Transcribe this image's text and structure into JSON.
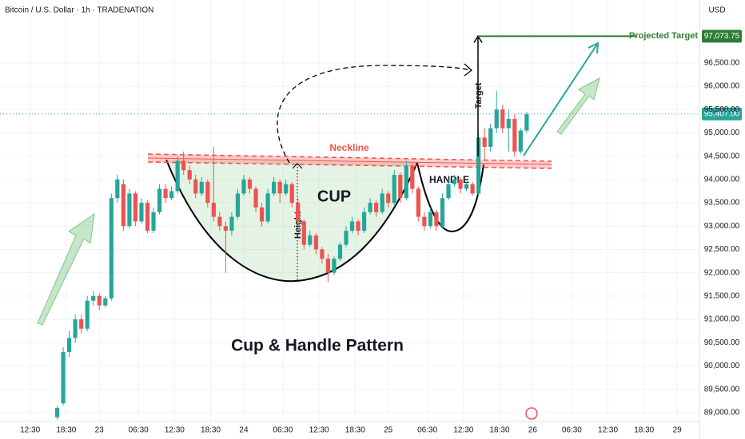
{
  "chart_data": {
    "type": "candlestick",
    "title": "Bitcoin / U.S. Dollar · 1h · TRADENATION",
    "currency": "USD",
    "up_color": "#26a69a",
    "down_color": "#ef5350",
    "grid": true,
    "x": [
      17,
      18,
      19,
      20,
      21,
      22,
      23,
      24,
      25,
      26,
      27,
      28,
      29,
      30,
      31,
      32,
      33,
      34,
      35,
      36,
      37,
      38,
      39,
      40,
      41,
      42,
      43,
      44,
      45,
      46,
      47,
      48,
      49,
      50,
      51,
      52,
      53,
      54,
      55,
      56,
      57,
      58,
      59,
      60,
      61,
      62,
      63,
      64,
      65,
      66,
      67,
      68,
      69,
      70,
      71,
      72,
      73,
      74,
      75,
      76,
      77,
      78,
      79,
      80,
      81,
      82,
      83,
      84,
      85,
      86,
      87,
      88,
      89,
      90,
      91,
      92,
      93,
      94,
      95
    ],
    "open": [
      88900,
      89200,
      90300,
      90600,
      91000,
      90800,
      91400,
      91500,
      91300,
      91450,
      93600,
      93900,
      93000,
      93700,
      93100,
      93500,
      92900,
      93300,
      93800,
      93600,
      93750,
      94400,
      94200,
      94000,
      93700,
      93950,
      93500,
      93200,
      93000,
      92900,
      93200,
      93700,
      94000,
      93800,
      93400,
      93100,
      93700,
      93950,
      93700,
      93900,
      93500,
      93100,
      92600,
      92800,
      92500,
      92300,
      92000,
      92300,
      92600,
      92900,
      93100,
      92900,
      93300,
      93500,
      93300,
      93700,
      93500,
      94100,
      93600,
      94300,
      93800,
      93200,
      93000,
      93300,
      93000,
      93600,
      93900,
      94000,
      93800,
      93900,
      93700,
      94900,
      94700,
      95100,
      95500,
      95100,
      95300,
      94600,
      95050
    ],
    "high": [
      89150,
      90400,
      90750,
      91100,
      91100,
      91500,
      91600,
      91550,
      91500,
      93700,
      94100,
      94000,
      93800,
      93750,
      93600,
      93550,
      93400,
      93900,
      93900,
      93850,
      94500,
      94600,
      94300,
      94100,
      94050,
      94000,
      94700,
      93300,
      93100,
      93300,
      93800,
      94100,
      94050,
      93850,
      93500,
      93800,
      94050,
      94000,
      94000,
      93950,
      93600,
      93150,
      92900,
      92850,
      92550,
      92400,
      92350,
      92650,
      93000,
      93200,
      93150,
      93400,
      93600,
      93550,
      93800,
      93750,
      94200,
      94150,
      94400,
      94350,
      93850,
      93300,
      93400,
      93350,
      93700,
      94000,
      94100,
      94050,
      93950,
      93950,
      95000,
      95100,
      95200,
      95900,
      95600,
      95500,
      95400,
      95100,
      95450
    ],
    "low": [
      88850,
      89150,
      90200,
      90500,
      90700,
      90750,
      91300,
      91200,
      91250,
      91400,
      93500,
      92900,
      92950,
      93000,
      93050,
      92850,
      92850,
      93250,
      93500,
      93550,
      93700,
      94100,
      93900,
      93600,
      93650,
      93400,
      93100,
      92900,
      92000,
      92800,
      93150,
      93650,
      93700,
      93300,
      93000,
      93050,
      93650,
      93500,
      93650,
      93400,
      93000,
      92500,
      92550,
      92400,
      92200,
      91800,
      91950,
      92250,
      92550,
      92850,
      92800,
      92850,
      93250,
      93200,
      93250,
      93400,
      93450,
      93500,
      93550,
      93700,
      93100,
      92900,
      92950,
      92900,
      92950,
      93550,
      93850,
      93700,
      93750,
      93650,
      93650,
      94400,
      94600,
      95000,
      95000,
      94600,
      94500,
      94550,
      95000
    ],
    "close": [
      89100,
      90300,
      90600,
      91000,
      90800,
      91400,
      91500,
      91300,
      91450,
      93600,
      94000,
      93000,
      93700,
      93100,
      93500,
      92900,
      93300,
      93800,
      93600,
      93750,
      94400,
      94200,
      94000,
      93700,
      93950,
      93500,
      93200,
      93000,
      92900,
      93200,
      93700,
      94000,
      93800,
      93400,
      93100,
      93700,
      93950,
      93700,
      93900,
      93500,
      93100,
      92600,
      92800,
      92500,
      92300,
      92000,
      92300,
      92600,
      92900,
      93100,
      92900,
      93300,
      93500,
      93300,
      93700,
      93500,
      94100,
      93600,
      94300,
      93800,
      93200,
      93000,
      93300,
      93000,
      93600,
      93900,
      94000,
      93800,
      93900,
      93700,
      94900,
      94700,
      95100,
      95500,
      95100,
      95300,
      94600,
      95050,
      95400
    ],
    "xlim": [
      7.5,
      123.7
    ],
    "xticks": [
      {
        "value": 12.5,
        "label": "12:30"
      },
      {
        "value": 18.5,
        "label": "18:30"
      },
      {
        "value": 24,
        "label": "23"
      },
      {
        "value": 30.5,
        "label": "06:30"
      },
      {
        "value": 36.5,
        "label": "12:30"
      },
      {
        "value": 42.5,
        "label": "18:30"
      },
      {
        "value": 48,
        "label": "24"
      },
      {
        "value": 54.5,
        "label": "06:30"
      },
      {
        "value": 60.5,
        "label": "12:30"
      },
      {
        "value": 66.5,
        "label": "18:30"
      },
      {
        "value": 72,
        "label": "25"
      },
      {
        "value": 78.5,
        "label": "06:30"
      },
      {
        "value": 84.5,
        "label": "12:30"
      },
      {
        "value": 90.5,
        "label": "18:30"
      },
      {
        "value": 96,
        "label": "26"
      },
      {
        "value": 102.5,
        "label": "06:30"
      },
      {
        "value": 108.5,
        "label": "12:30"
      },
      {
        "value": 114.5,
        "label": "18:30"
      },
      {
        "value": 120,
        "label": "29"
      }
    ],
    "ylim": [
      88810,
      97850
    ],
    "yticks": [
      {
        "value": 89000,
        "label": "89,000.00"
      },
      {
        "value": 89500,
        "label": "89,500.00"
      },
      {
        "value": 90000,
        "label": "90,000.00"
      },
      {
        "value": 90500,
        "label": "90,500.00"
      },
      {
        "value": 91000,
        "label": "91,000.00"
      },
      {
        "value": 91500,
        "label": "91,500.00"
      },
      {
        "value": 92000,
        "label": "92,000.00"
      },
      {
        "value": 92500,
        "label": "92,500.00"
      },
      {
        "value": 93000,
        "label": "93,000.00"
      },
      {
        "value": 93500,
        "label": "93,500.00"
      },
      {
        "value": 94000,
        "label": "94,000.00"
      },
      {
        "value": 94500,
        "label": "94,500.00"
      },
      {
        "value": 95000,
        "label": "95,000.00"
      },
      {
        "value": 95500,
        "label": "95,500.00"
      },
      {
        "value": 96000,
        "label": "96,000.00"
      },
      {
        "value": 96500,
        "label": "96,500.00"
      }
    ],
    "projected_target": {
      "label": "Projected Target",
      "value": 97073.75,
      "value_label": "97,073.75"
    },
    "last_price": {
      "value": 95407,
      "label": "95,407.00"
    },
    "annotations": {
      "neckline": "Neckline",
      "cup": "CUP",
      "handle": "HANDLE",
      "height": "Height",
      "target": "Target",
      "pattern": "Cup & Handle Pattern"
    }
  }
}
